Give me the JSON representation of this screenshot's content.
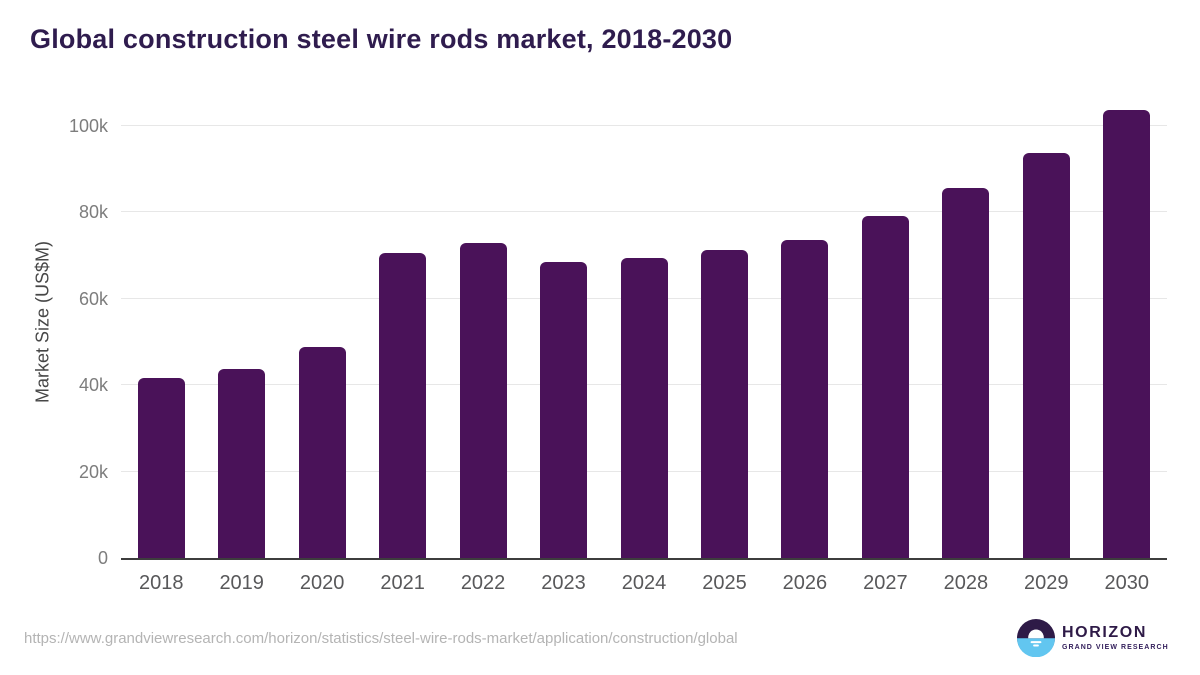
{
  "header": {
    "title": "Global construction steel wire rods market, 2018-2030"
  },
  "chart_data": {
    "type": "bar",
    "title": "Global construction steel wire rods market, 2018-2030",
    "categories": [
      "2018",
      "2019",
      "2020",
      "2021",
      "2022",
      "2023",
      "2024",
      "2025",
      "2026",
      "2027",
      "2028",
      "2029",
      "2030"
    ],
    "values": [
      41600,
      43700,
      48800,
      70600,
      72900,
      68500,
      69400,
      71300,
      73600,
      79200,
      85600,
      93700,
      103700
    ],
    "xlabel": "",
    "ylabel": "Market Size (US$M)",
    "ylim": [
      0,
      106000
    ],
    "y_ticks": [
      {
        "label": "0",
        "value": 0
      },
      {
        "label": "20k",
        "value": 20000
      },
      {
        "label": "40k",
        "value": 40000
      },
      {
        "label": "60k",
        "value": 60000
      },
      {
        "label": "80k",
        "value": 80000
      },
      {
        "label": "100k",
        "value": 100000
      }
    ],
    "bar_color": "#4a1259",
    "grid": "horizontal-only",
    "legend": "none"
  },
  "footer": {
    "source_url": "https://www.grandviewresearch.com/horizon/statistics/steel-wire-rods-market/application/construction/global",
    "logo": {
      "name": "HORIZON",
      "subtitle": "GRAND VIEW RESEARCH",
      "purple": "#2e1a47",
      "blue": "#62c6f0"
    }
  }
}
